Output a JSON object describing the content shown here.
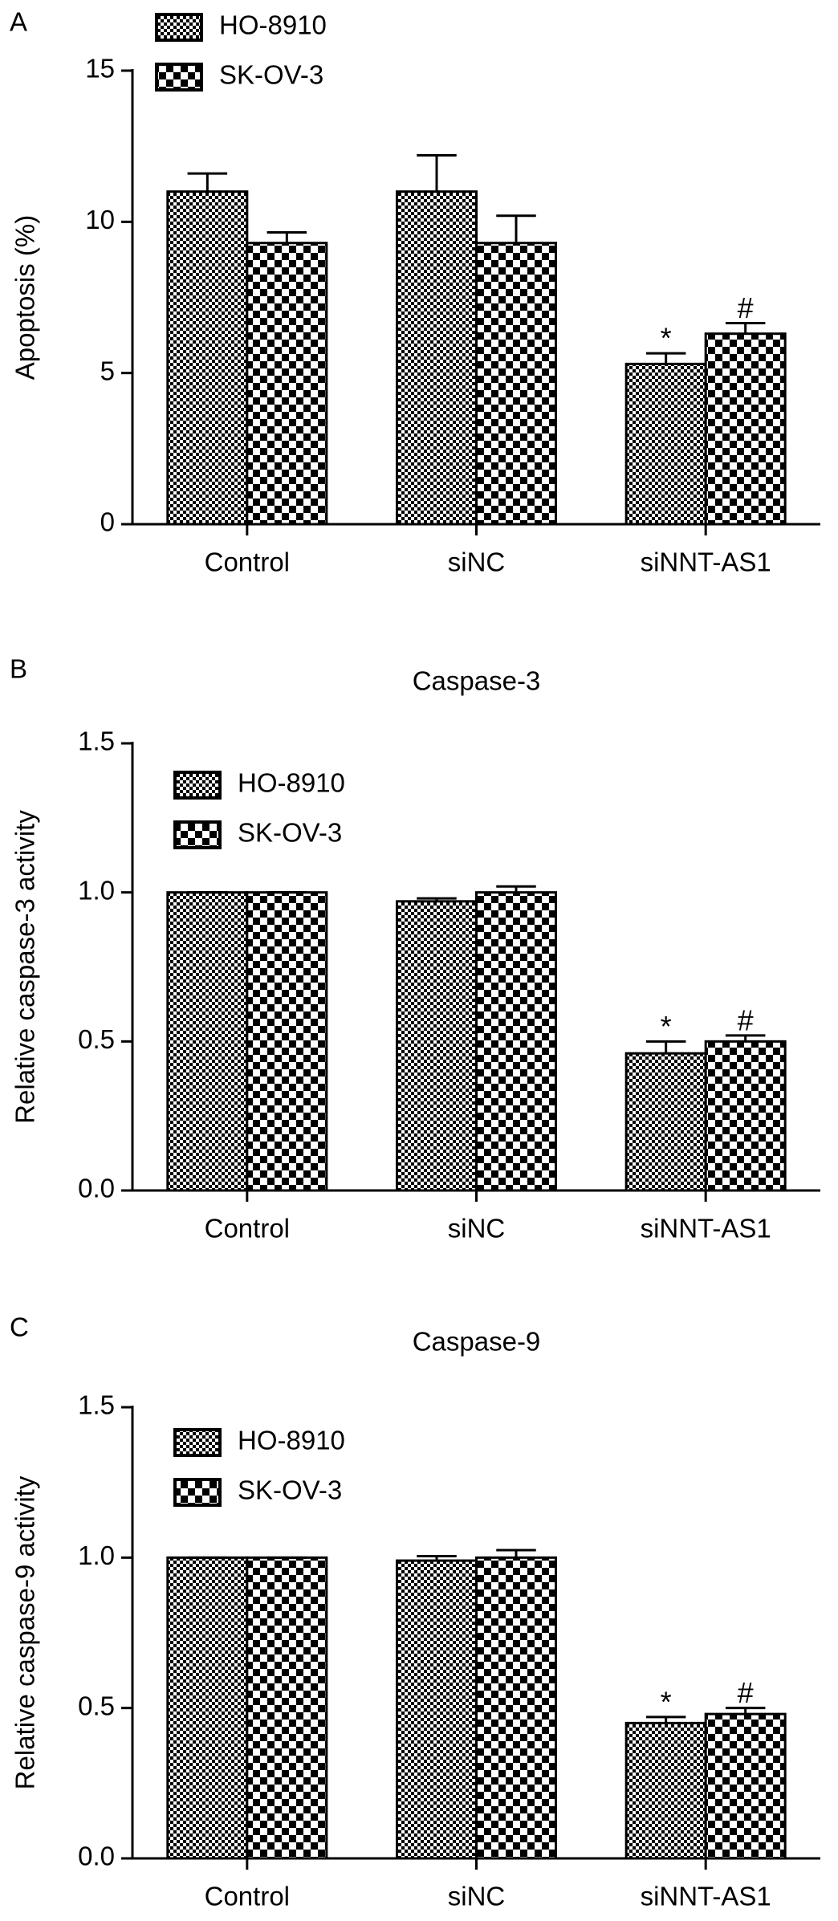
{
  "chart_data": [
    {
      "type": "bar",
      "panel_label": "A",
      "ylabel": "Apoptosis (%)",
      "categories": [
        "Control",
        "siNC",
        "siNNT-AS1"
      ],
      "series": [
        {
          "name": "HO-8910",
          "color": "#000000",
          "values": [
            11.0,
            11.0,
            5.3
          ],
          "errors": [
            0.6,
            1.2,
            0.35
          ],
          "value_annotations": [
            null,
            null,
            "*"
          ]
        },
        {
          "name": "SK-OV-3",
          "color": "#000000",
          "values": [
            9.3,
            9.3,
            6.3
          ],
          "errors": [
            0.35,
            0.9,
            0.35
          ],
          "value_annotations": [
            null,
            null,
            "#"
          ]
        }
      ],
      "ylim": [
        0,
        15
      ],
      "yticks": [
        0,
        5,
        10,
        15
      ]
    },
    {
      "type": "bar",
      "panel_label": "B",
      "title": "Caspase-3",
      "ylabel": "Relative caspase-3 activity",
      "categories": [
        "Control",
        "siNC",
        "siNNT-AS1"
      ],
      "series": [
        {
          "name": "HO-8910",
          "color": "#000000",
          "values": [
            1.0,
            0.97,
            0.46
          ],
          "errors": [
            0,
            0.01,
            0.04
          ],
          "value_annotations": [
            null,
            null,
            "*"
          ]
        },
        {
          "name": "SK-OV-3",
          "color": "#000000",
          "values": [
            1.0,
            1.0,
            0.5
          ],
          "errors": [
            0,
            0.02,
            0.02
          ],
          "value_annotations": [
            null,
            null,
            "#"
          ]
        }
      ],
      "ylim": [
        0,
        1.5
      ],
      "yticks": [
        {
          "value": 0,
          "label": "0.0"
        },
        {
          "value": 0.5,
          "label": "0.5"
        },
        {
          "value": 1,
          "label": "1.0"
        },
        {
          "value": 1.5,
          "label": "1.5"
        }
      ]
    },
    {
      "type": "bar",
      "panel_label": "C",
      "title": "Caspase-9",
      "ylabel": "Relative caspase-9 activity",
      "categories": [
        "Control",
        "siNC",
        "siNNT-AS1"
      ],
      "series": [
        {
          "name": "HO-8910",
          "color": "#000000",
          "values": [
            1.0,
            0.99,
            0.45
          ],
          "errors": [
            0,
            0.015,
            0.02
          ],
          "value_annotations": [
            null,
            null,
            "*"
          ]
        },
        {
          "name": "SK-OV-3",
          "color": "#000000",
          "values": [
            1.0,
            1.0,
            0.48
          ],
          "errors": [
            0,
            0.025,
            0.02
          ],
          "value_annotations": [
            null,
            null,
            "#"
          ]
        }
      ],
      "ylim": [
        0,
        1.5
      ],
      "yticks": [
        {
          "value": 0,
          "label": "0.0"
        },
        {
          "value": 0.5,
          "label": "0.5"
        },
        {
          "value": 1,
          "label": "1.0"
        },
        {
          "value": 1.5,
          "label": "1.5"
        }
      ]
    }
  ]
}
